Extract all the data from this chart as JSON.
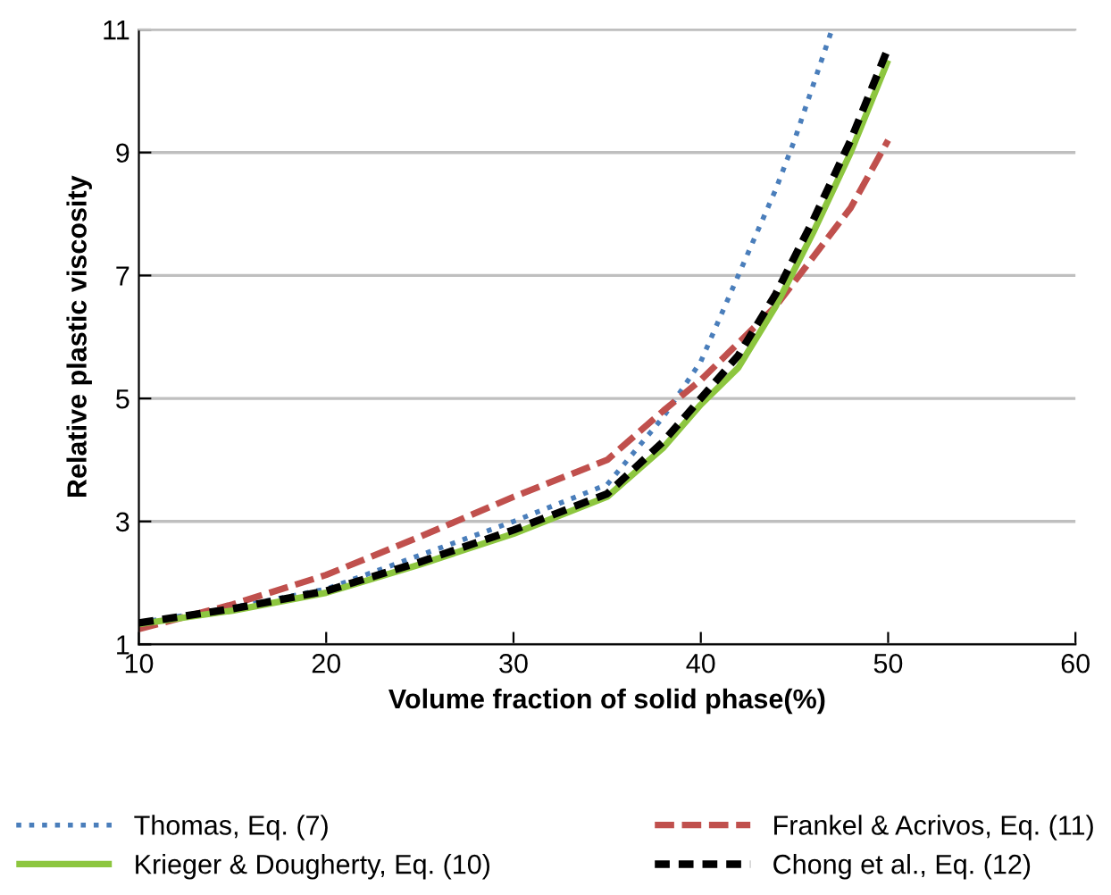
{
  "chart_data": {
    "type": "line",
    "xlabel": "Volume fraction of solid phase(%)",
    "ylabel": "Relative plastic viscosity",
    "xlim": [
      10,
      60
    ],
    "xticks": [
      10,
      20,
      30,
      40,
      50,
      60
    ],
    "ylim": [
      1,
      11
    ],
    "yticks": [
      1,
      3,
      5,
      7,
      9,
      11
    ],
    "grid": "y",
    "legend": "bottom",
    "marker": "none",
    "series": [
      {
        "name": "Thomas, Eq. (7)",
        "color": "#4a7ebb",
        "line_style": "dotted",
        "x": [
          10,
          15,
          20,
          25,
          30,
          35,
          38,
          40,
          42,
          44,
          45,
          46,
          47
        ],
        "values": [
          1.35,
          1.6,
          1.9,
          2.45,
          3.0,
          3.6,
          4.7,
          5.6,
          7.0,
          8.4,
          9.2,
          10.1,
          11
        ]
      },
      {
        "name": "Frankel & Acrivos, Eq. (11)",
        "color": "#c0504d",
        "line_style": "dashed",
        "x": [
          10,
          15,
          20,
          25,
          30,
          35,
          38,
          40,
          42,
          44,
          45,
          46,
          48,
          50
        ],
        "values": [
          1.25,
          1.65,
          2.13,
          2.75,
          3.4,
          4.0,
          4.8,
          5.3,
          5.9,
          6.5,
          6.9,
          7.3,
          8.1,
          9.2
        ]
      },
      {
        "name": "Krieger & Dougherty, Eq. (10)",
        "color": "#8dc63f",
        "line_style": "solid",
        "x": [
          10,
          15,
          20,
          25,
          30,
          35,
          38,
          40,
          42,
          44,
          45,
          46,
          48,
          50
        ],
        "values": [
          1.33,
          1.55,
          1.84,
          2.3,
          2.8,
          3.4,
          4.2,
          4.9,
          5.5,
          6.5,
          7.1,
          7.7,
          9.0,
          10.5
        ]
      },
      {
        "name": "Chong et al., Eq. (12)",
        "color": "#000000",
        "line_style": "dashed",
        "x": [
          10,
          15,
          20,
          25,
          30,
          35,
          38,
          40,
          42,
          44,
          45,
          46,
          48,
          50
        ],
        "values": [
          1.35,
          1.58,
          1.87,
          2.34,
          2.86,
          3.45,
          4.3,
          5.0,
          5.7,
          6.7,
          7.3,
          7.9,
          9.2,
          10.7
        ]
      }
    ]
  }
}
